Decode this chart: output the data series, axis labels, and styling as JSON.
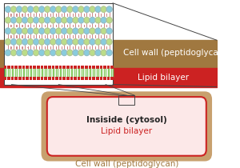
{
  "bg_color": "#ffffff",
  "brown_band_color": "#a07840",
  "red_band_color": "#cc2222",
  "green_lipid_color": "#88cc66",
  "cell_interior_color": "#fce8e8",
  "cell_border_color": "#c8a06e",
  "blue_dot_color": "#88ccdd",
  "green_dot_color": "#bbdd88",
  "peptide_color": "#cc8888",
  "zoom_box_color": "#444444",
  "label_cell_wall": "Cell wall (peptidoglycan)",
  "label_lipid": "Lipid bilayer",
  "label_inside": "Insiside (cytosol)",
  "label_cell_wall_bottom": "Cell wall (peptidoglycan)",
  "label_lipid_red": "Lipid bilayer",
  "label_fontsize": 7.5
}
